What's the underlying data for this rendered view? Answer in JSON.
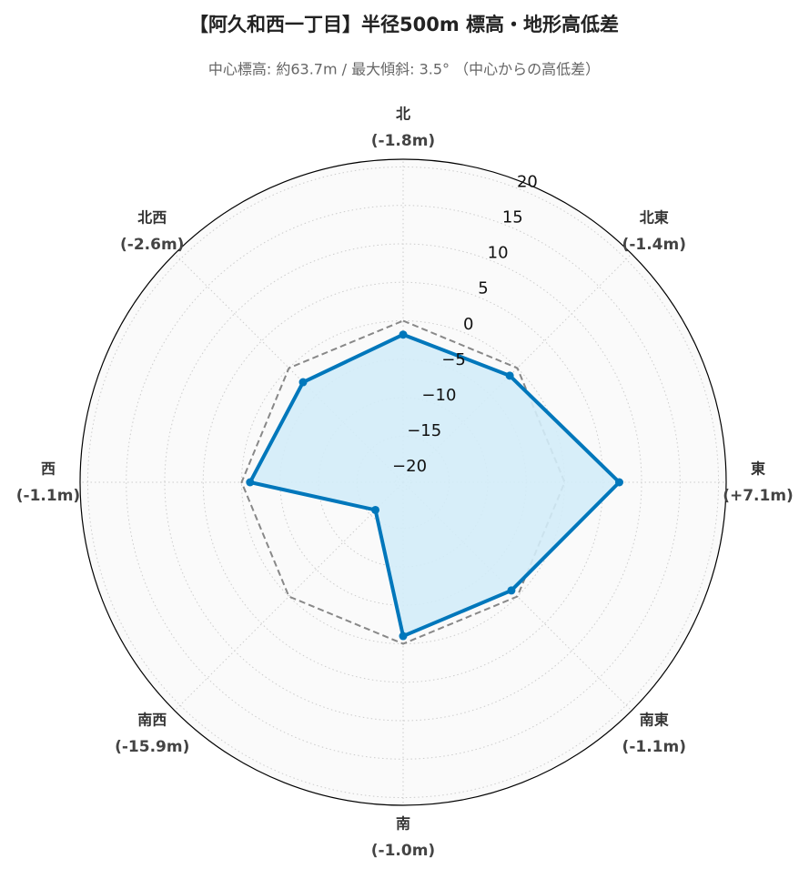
{
  "chart_data": {
    "type": "radar",
    "title": "【阿久和西一丁目】半径500m 標高・地形高低差",
    "subtitle": "中心標高: 約63.7m / 最大傾斜: 3.5° （中心からの高低差）",
    "categories": [
      "北",
      "北東",
      "東",
      "南東",
      "南",
      "南西",
      "西",
      "北西"
    ],
    "values": [
      -1.8,
      -1.4,
      7.1,
      -1.1,
      -1.0,
      -15.9,
      -1.1,
      -2.6
    ],
    "value_labels": [
      "(-1.8m)",
      "(-1.4m)",
      "(+7.1m)",
      "(-1.1m)",
      "(-1.0m)",
      "(-15.9m)",
      "(-1.1m)",
      "(-2.6m)"
    ],
    "reference_values": [
      0,
      0,
      0,
      0,
      0,
      0,
      0,
      0
    ],
    "color": "#0077bb",
    "fill_color": "#d3ecf8",
    "reference_color": "#888888",
    "ylim": [
      -21,
      21
    ],
    "yticks": [
      {
        "value": -20,
        "label": "−20"
      },
      {
        "value": -15,
        "label": "−15"
      },
      {
        "value": -10,
        "label": "−10"
      },
      {
        "value": -5,
        "label": "−5"
      },
      0,
      5,
      10,
      15,
      20
    ],
    "grid": true
  }
}
